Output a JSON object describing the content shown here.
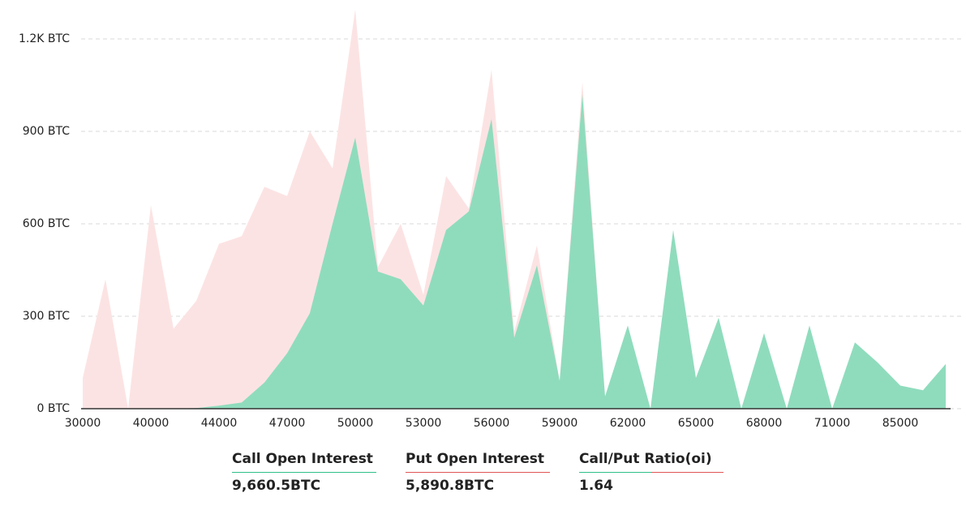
{
  "chart_data": {
    "type": "area",
    "categories": [
      "30000",
      null,
      null,
      "40000",
      null,
      null,
      "44000",
      null,
      null,
      "47000",
      null,
      null,
      "50000",
      null,
      null,
      "53000",
      null,
      null,
      "56000",
      null,
      null,
      "59000",
      null,
      null,
      "62000",
      null,
      null,
      "65000",
      null,
      null,
      "68000",
      null,
      null,
      "71000",
      null,
      null,
      "85000",
      null,
      null
    ],
    "series": [
      {
        "name": "Put Open Interest",
        "color": "#fce3e3",
        "values": [
          100,
          420,
          0,
          660,
          260,
          350,
          535,
          560,
          720,
          690,
          900,
          780,
          1295,
          460,
          600,
          370,
          755,
          650,
          1100,
          250,
          530,
          90,
          1060,
          30,
          40,
          0,
          30,
          20,
          30,
          0,
          20,
          0,
          20,
          0,
          20,
          15,
          10,
          10,
          10
        ]
      },
      {
        "name": "Call Open Interest",
        "color": "#8fdcbd",
        "values": [
          0,
          0,
          0,
          0,
          0,
          2,
          10,
          20,
          85,
          180,
          310,
          600,
          880,
          445,
          420,
          335,
          580,
          640,
          940,
          230,
          465,
          90,
          1020,
          40,
          270,
          0,
          580,
          100,
          295,
          0,
          245,
          0,
          270,
          0,
          215,
          150,
          75,
          60,
          145
        ]
      }
    ],
    "ylim": [
      0,
      1200
    ],
    "yticks": [
      {
        "value": 0,
        "label": "0 BTC"
      },
      {
        "value": 300,
        "label": "300 BTC"
      },
      {
        "value": 600,
        "label": "600 BTC"
      },
      {
        "value": 900,
        "label": "900 BTC"
      },
      {
        "value": 1200,
        "label": "1.2K BTC"
      }
    ],
    "grid": true
  },
  "summary": [
    {
      "label": "Call Open Interest",
      "value": "9,660.5BTC"
    },
    {
      "label": "Put Open Interest",
      "value": "5,890.8BTC"
    },
    {
      "label": "Call/Put Ratio(oi)",
      "value": "1.64"
    }
  ]
}
